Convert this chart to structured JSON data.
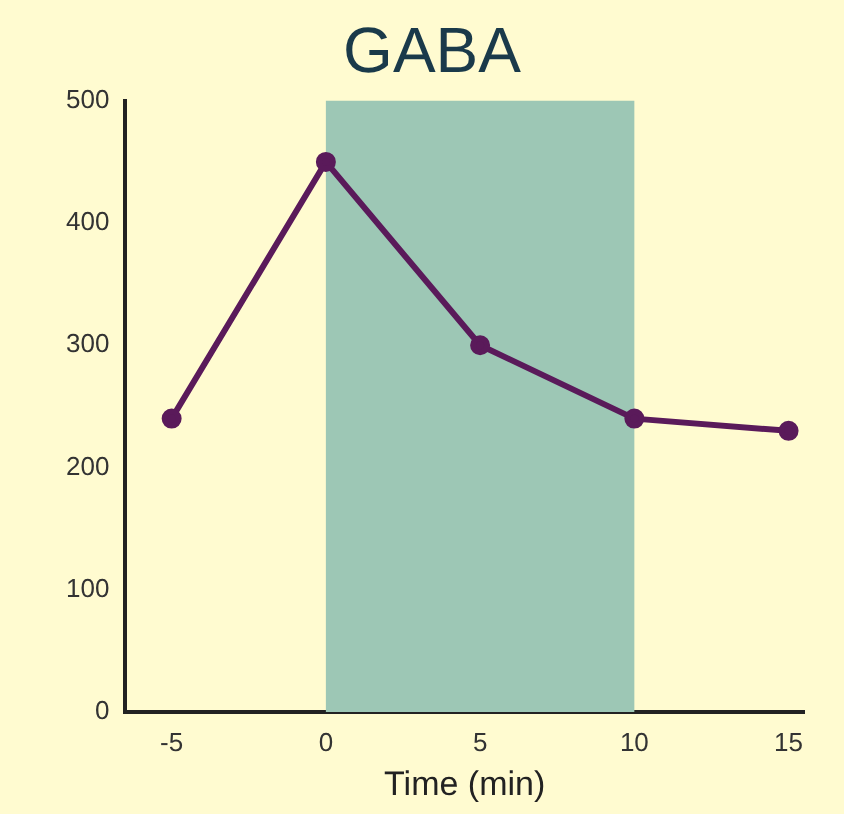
{
  "chart_data": {
    "type": "line",
    "title": "GABA",
    "xlabel": "Time (min)",
    "x": [
      -5,
      0,
      5,
      10,
      15
    ],
    "series": [
      {
        "color": "#5a1a5a",
        "values": [
          240,
          450,
          300,
          240,
          230
        ]
      }
    ],
    "xlim": [
      -6.5,
      15.5
    ],
    "xticks": [
      -5,
      0,
      5,
      10,
      15
    ],
    "ylim": [
      0,
      500
    ],
    "yticks": [
      0,
      100,
      200,
      300,
      400,
      500
    ],
    "bands": [
      {
        "axis": "x",
        "from": 0,
        "to": 10,
        "color": "#9dc7b5"
      }
    ],
    "marker": "circle",
    "line_style": "solid",
    "grid": false,
    "legend": false
  }
}
